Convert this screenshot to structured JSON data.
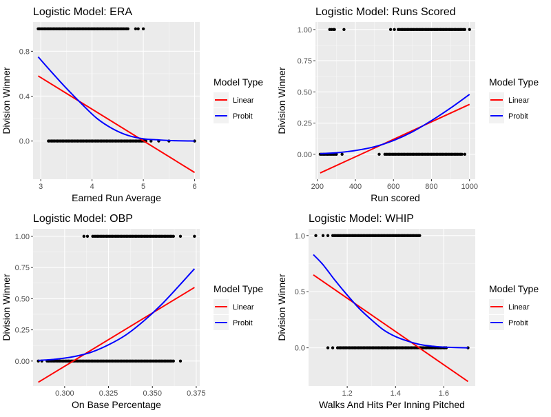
{
  "legend_common": {
    "title": "Model Type",
    "entries": [
      {
        "label": "Linear",
        "color": "#ff0000"
      },
      {
        "label": "Probit",
        "color": "#0000ff"
      }
    ]
  },
  "theme": {
    "panel_bg": "#ebebeb",
    "grid_major": "#ffffff",
    "points": "#000000",
    "text": "#1a1a1a",
    "tick_text": "#4d4d4d"
  },
  "chart_data": [
    {
      "type": "scatter",
      "title": "Logistic Model: ERA",
      "xlabel": "Earned Run Average",
      "ylabel": "Division Winner",
      "xlim": [
        2.85,
        6.1
      ],
      "ylim": [
        -0.34,
        1.06
      ],
      "xticks": [
        3,
        4,
        5,
        6
      ],
      "xtick_labels": [
        "3",
        "4",
        "5",
        "6"
      ],
      "yticks": [
        0,
        0.4,
        0.8
      ],
      "ytick_labels": [
        "0.0",
        "0.4",
        "0.8"
      ],
      "grid": true,
      "legend_position": "right",
      "points_y1": {
        "x_ranges": [
          [
            2.95,
            4.7
          ]
        ],
        "x_extra": [
          4.85,
          4.9,
          5.0
        ]
      },
      "points_y0": {
        "x_ranges": [
          [
            3.15,
            5.05
          ]
        ],
        "x_extra": [
          5.15,
          5.3,
          5.5,
          6.0
        ]
      },
      "series": [
        {
          "name": "Linear",
          "x": [
            2.95,
            6.0
          ],
          "y": [
            0.58,
            -0.28
          ]
        },
        {
          "name": "Probit",
          "x": [
            2.95,
            3.2,
            3.5,
            3.8,
            4.1,
            4.4,
            4.7,
            5.0,
            5.3,
            5.6,
            6.0
          ],
          "y": [
            0.75,
            0.62,
            0.47,
            0.33,
            0.2,
            0.11,
            0.05,
            0.02,
            0.01,
            0.003,
            0.0
          ]
        }
      ]
    },
    {
      "type": "scatter",
      "title": "Logistic Model: Runs Scored",
      "xlabel": "Run scored",
      "ylabel": "Division Winner",
      "xlim": [
        190,
        1030
      ],
      "ylim": [
        -0.2,
        1.06
      ],
      "xticks": [
        200,
        400,
        600,
        800,
        1000
      ],
      "xtick_labels": [
        "200",
        "400",
        "600",
        "800",
        "1000"
      ],
      "yticks": [
        0,
        0.25,
        0.5,
        0.75,
        1.0
      ],
      "ytick_labels": [
        "0.00",
        "0.25",
        "0.50",
        "0.75",
        "1.00"
      ],
      "grid": true,
      "legend_position": "right",
      "points_y1": {
        "x_ranges": [
          [
            625,
            975
          ]
        ],
        "x_extra": [
          265,
          275,
          285,
          290,
          340,
          585,
          605,
          1000
        ]
      },
      "points_y0": {
        "x_ranges": [
          [
            215,
            300
          ],
          [
            555,
            960
          ]
        ],
        "x_extra": [
          330,
          525,
          975
        ]
      },
      "series": [
        {
          "name": "Linear",
          "x": [
            215,
            1000
          ],
          "y": [
            -0.15,
            0.4
          ]
        },
        {
          "name": "Probit",
          "x": [
            215,
            300,
            400,
            500,
            600,
            700,
            800,
            900,
            1000
          ],
          "y": [
            0.005,
            0.012,
            0.03,
            0.06,
            0.11,
            0.18,
            0.27,
            0.37,
            0.48
          ]
        }
      ]
    },
    {
      "type": "scatter",
      "title": "Logistic Model: OBP",
      "xlabel": "On Base Percentage",
      "ylabel": "Division Winner",
      "xlim": [
        0.282,
        0.377
      ],
      "ylim": [
        -0.2,
        1.06
      ],
      "xticks": [
        0.3,
        0.325,
        0.35,
        0.375
      ],
      "xtick_labels": [
        "0.300",
        "0.325",
        "0.350",
        "0.375"
      ],
      "grid": true,
      "yticks": [
        0,
        0.25,
        0.5,
        0.75,
        1.0
      ],
      "ytick_labels": [
        "0.00",
        "0.25",
        "0.50",
        "0.75",
        "1.00"
      ],
      "legend_position": "right",
      "points_y1": {
        "x_ranges": [
          [
            0.316,
            0.362
          ]
        ],
        "x_extra": [
          0.311,
          0.313,
          0.366,
          0.374
        ]
      },
      "points_y0": {
        "x_ranges": [
          [
            0.29,
            0.362
          ]
        ],
        "x_extra": [
          0.285,
          0.287,
          0.366
        ]
      },
      "series": [
        {
          "name": "Linear",
          "x": [
            0.285,
            0.374
          ],
          "y": [
            -0.17,
            0.59
          ]
        },
        {
          "name": "Probit",
          "x": [
            0.285,
            0.295,
            0.305,
            0.315,
            0.325,
            0.335,
            0.345,
            0.355,
            0.365,
            0.374
          ],
          "y": [
            0.005,
            0.015,
            0.035,
            0.07,
            0.13,
            0.21,
            0.32,
            0.45,
            0.6,
            0.74
          ]
        }
      ]
    },
    {
      "type": "scatter",
      "title": "Logistic Model: WHIP",
      "xlabel": "Walks And Hits Per Inning Pitched",
      "ylabel": "Division Winner",
      "xlim": [
        1.04,
        1.73
      ],
      "ylim": [
        -0.34,
        1.06
      ],
      "xticks": [
        1.2,
        1.4,
        1.6
      ],
      "xtick_labels": [
        "1.2",
        "1.4",
        "1.6"
      ],
      "yticks": [
        0,
        0.5,
        1.0
      ],
      "ytick_labels": [
        "0.0",
        "0.5",
        "1.0"
      ],
      "grid": true,
      "legend_position": "right",
      "points_y1": {
        "x_ranges": [
          [
            1.14,
            1.5
          ]
        ],
        "x_extra": [
          1.07,
          1.1,
          1.12
        ]
      },
      "points_y0": {
        "x_ranges": [
          [
            1.16,
            1.61
          ]
        ],
        "x_extra": [
          1.12,
          1.14,
          1.7
        ]
      },
      "series": [
        {
          "name": "Linear",
          "x": [
            1.06,
            1.7
          ],
          "y": [
            0.65,
            -0.3
          ]
        },
        {
          "name": "Probit",
          "x": [
            1.06,
            1.1,
            1.15,
            1.2,
            1.25,
            1.3,
            1.35,
            1.4,
            1.45,
            1.5,
            1.55,
            1.6,
            1.7
          ],
          "y": [
            0.83,
            0.74,
            0.6,
            0.47,
            0.35,
            0.25,
            0.16,
            0.1,
            0.06,
            0.03,
            0.015,
            0.006,
            0.0
          ]
        }
      ]
    }
  ]
}
